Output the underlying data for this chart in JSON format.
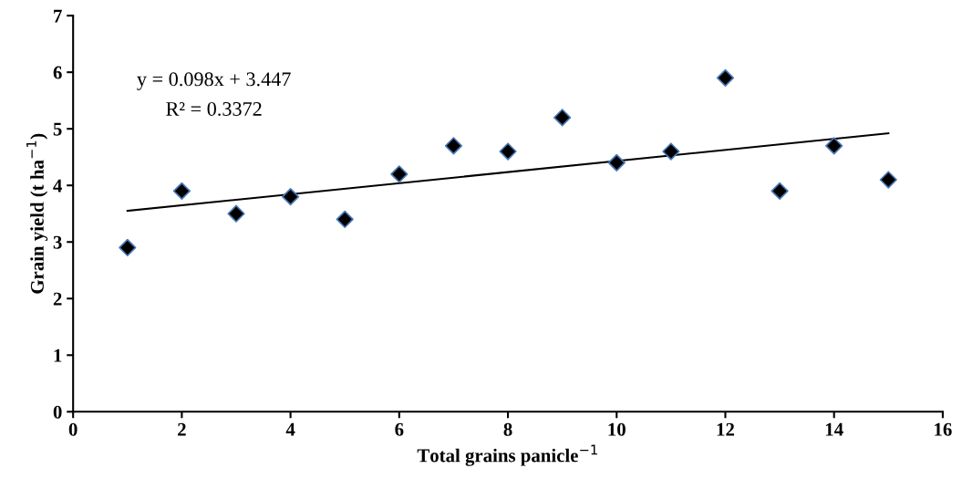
{
  "chart_data": {
    "type": "scatter",
    "xlabel": "Total grains panicle$^{−1}$",
    "ylabel": "Grain yield (t ha$^{−1}$)",
    "xlim": [
      0,
      16
    ],
    "xticks": [
      0,
      2,
      4,
      6,
      8,
      10,
      12,
      14,
      16
    ],
    "ylim": [
      0,
      7
    ],
    "yticks": [
      0,
      1,
      2,
      3,
      4,
      5,
      6,
      7
    ],
    "grid": false,
    "legend": false,
    "annotations": [
      "y = 0.098x + 3.447",
      "R² = 0.3372"
    ],
    "series": [
      {
        "color": "#000000",
        "marker": "diamond",
        "x": [
          1,
          2,
          3,
          4,
          5,
          6,
          7,
          8,
          9,
          10,
          11,
          12,
          13,
          14,
          15
        ],
        "values": [
          2.9,
          3.9,
          3.5,
          3.8,
          3.4,
          4.2,
          4.7,
          4.6,
          5.2,
          4.4,
          4.6,
          5.9,
          3.9,
          4.7,
          4.1
        ]
      },
      {
        "type": "line",
        "color": "#000000",
        "marker": "none",
        "line_style": "solid",
        "x": [
          1,
          15
        ],
        "values": [
          3.55,
          4.92
        ]
      }
    ]
  }
}
